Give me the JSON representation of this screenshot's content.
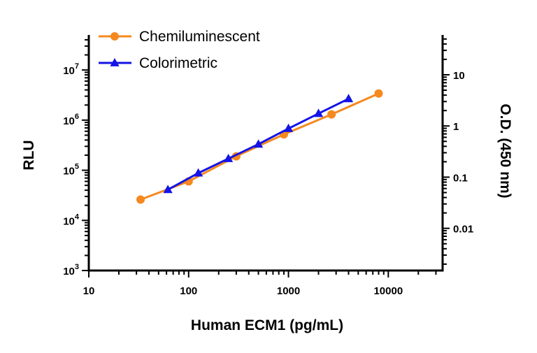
{
  "chart_data": {
    "type": "line",
    "xlabel": "Human ECM1 (pg/mL)",
    "ylabel_left": "RLU",
    "ylabel_right": "O.D. (450 nm)",
    "x_scale": "log",
    "y_left_scale": "log",
    "y_right_scale": "log",
    "xlim": [
      10,
      35000
    ],
    "ylim_left": [
      1000,
      50000000
    ],
    "ylim_right": [
      0.0015,
      60
    ],
    "x_ticks": [
      {
        "value": 10,
        "label": "10"
      },
      {
        "value": 100,
        "label": "100"
      },
      {
        "value": 1000,
        "label": "1000"
      },
      {
        "value": 10000,
        "label": "10000"
      }
    ],
    "y_left_ticks": [
      {
        "value": 1000,
        "base": "10",
        "exp": "3"
      },
      {
        "value": 10000,
        "base": "10",
        "exp": "4"
      },
      {
        "value": 100000,
        "base": "10",
        "exp": "5"
      },
      {
        "value": 1000000,
        "base": "10",
        "exp": "6"
      },
      {
        "value": 10000000,
        "base": "10",
        "exp": "7"
      }
    ],
    "y_right_ticks": [
      {
        "value": 0.01,
        "label": "0.01"
      },
      {
        "value": 0.1,
        "label": "0.1"
      },
      {
        "value": 1,
        "label": "1"
      },
      {
        "value": 10,
        "label": "10"
      }
    ],
    "legend_position": "top-left",
    "series": [
      {
        "name": "Chemiluminescent",
        "axis": "left",
        "color": "#F5891F",
        "marker": "circle",
        "x": [
          33,
          100,
          300,
          900,
          2700,
          8000
        ],
        "y": [
          26000,
          60000,
          190000,
          520000,
          1300000,
          3400000
        ]
      },
      {
        "name": "Colorimetric",
        "axis": "right",
        "color": "#1414E6",
        "marker": "triangle",
        "x": [
          62,
          125,
          250,
          500,
          1000,
          2000,
          4000
        ],
        "y": [
          0.057,
          0.12,
          0.23,
          0.44,
          0.89,
          1.75,
          3.4
        ]
      }
    ]
  }
}
